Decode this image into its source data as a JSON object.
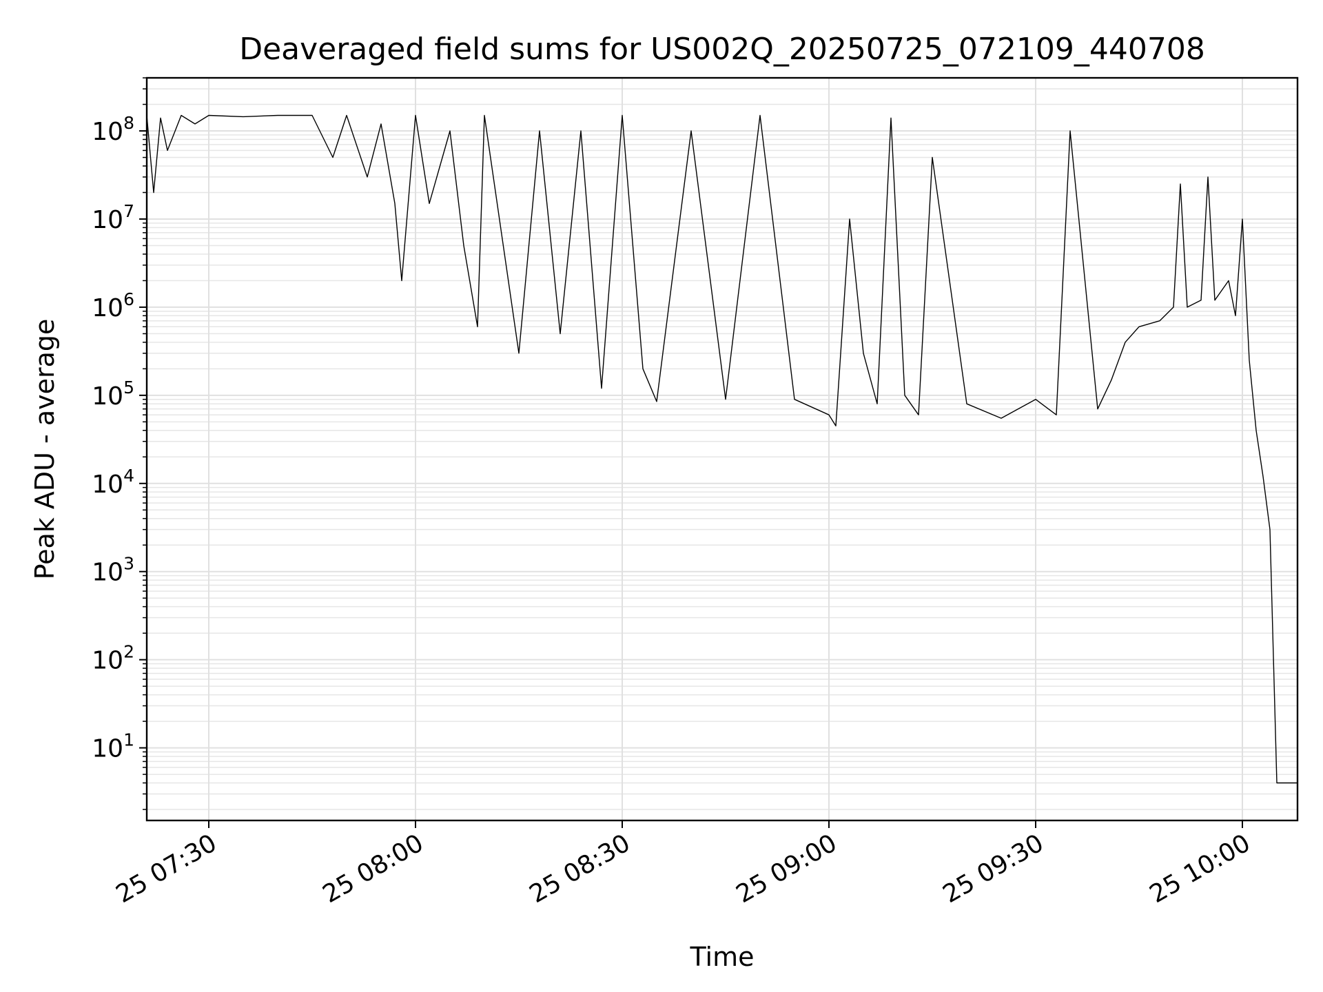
{
  "chart_data": {
    "type": "line",
    "title": "Deaveraged field sums for US002Q_20250725_072109_440708",
    "xlabel": "Time",
    "ylabel": "Peak ADU - average",
    "y_scale": "log",
    "x_range": [
      "2025-07-25 07:21",
      "2025-07-25 10:08"
    ],
    "ylim": [
      1.5,
      400000000
    ],
    "grid": "major and minor",
    "x_ticks": [
      {
        "time": "2025-07-25 07:30",
        "label": "25 07:30"
      },
      {
        "time": "2025-07-25 08:00",
        "label": "25 08:00"
      },
      {
        "time": "2025-07-25 08:30",
        "label": "25 08:30"
      },
      {
        "time": "2025-07-25 09:00",
        "label": "25 09:00"
      },
      {
        "time": "2025-07-25 09:30",
        "label": "25 09:30"
      },
      {
        "time": "2025-07-25 10:00",
        "label": "25 10:00"
      }
    ],
    "y_ticks": [
      {
        "value": 10,
        "base": "10",
        "exp": "1"
      },
      {
        "value": 100,
        "base": "10",
        "exp": "2"
      },
      {
        "value": 1000,
        "base": "10",
        "exp": "3"
      },
      {
        "value": 10000,
        "base": "10",
        "exp": "4"
      },
      {
        "value": 100000,
        "base": "10",
        "exp": "5"
      },
      {
        "value": 1000000,
        "base": "10",
        "exp": "6"
      },
      {
        "value": 10000000,
        "base": "10",
        "exp": "7"
      },
      {
        "value": 100000000,
        "base": "10",
        "exp": "8"
      }
    ],
    "series": [
      {
        "color": "#000000",
        "points": [
          [
            "2025-07-25 07:21",
            150000000.0
          ],
          [
            "2025-07-25 07:22",
            20000000.0
          ],
          [
            "2025-07-25 07:23",
            140000000.0
          ],
          [
            "2025-07-25 07:24",
            60000000.0
          ],
          [
            "2025-07-25 07:26",
            150000000.0
          ],
          [
            "2025-07-25 07:28",
            120000000.0
          ],
          [
            "2025-07-25 07:30",
            150000000.0
          ],
          [
            "2025-07-25 07:35",
            145000000.0
          ],
          [
            "2025-07-25 07:40",
            150000000.0
          ],
          [
            "2025-07-25 07:45",
            150000000.0
          ],
          [
            "2025-07-25 07:48",
            50000000.0
          ],
          [
            "2025-07-25 07:50",
            150000000.0
          ],
          [
            "2025-07-25 07:53",
            30000000.0
          ],
          [
            "2025-07-25 07:55",
            120000000.0
          ],
          [
            "2025-07-25 07:57",
            15000000.0
          ],
          [
            "2025-07-25 07:58",
            2000000.0
          ],
          [
            "2025-07-25 08:00",
            150000000.0
          ],
          [
            "2025-07-25 08:02",
            15000000.0
          ],
          [
            "2025-07-25 08:05",
            100000000.0
          ],
          [
            "2025-07-25 08:07",
            5000000.0
          ],
          [
            "2025-07-25 08:09",
            600000.0
          ],
          [
            "2025-07-25 08:10",
            150000000.0
          ],
          [
            "2025-07-25 08:15",
            300000.0
          ],
          [
            "2025-07-25 08:18",
            100000000.0
          ],
          [
            "2025-07-25 08:21",
            500000.0
          ],
          [
            "2025-07-25 08:24",
            100000000.0
          ],
          [
            "2025-07-25 08:27",
            120000.0
          ],
          [
            "2025-07-25 08:30",
            150000000.0
          ],
          [
            "2025-07-25 08:33",
            200000.0
          ],
          [
            "2025-07-25 08:35",
            85000.0
          ],
          [
            "2025-07-25 08:40",
            100000000.0
          ],
          [
            "2025-07-25 08:45",
            90000.0
          ],
          [
            "2025-07-25 08:50",
            150000000.0
          ],
          [
            "2025-07-25 08:55",
            90000.0
          ],
          [
            "2025-07-25 09:00",
            60000.0
          ],
          [
            "2025-07-25 09:01",
            45000.0
          ],
          [
            "2025-07-25 09:03",
            10000000.0
          ],
          [
            "2025-07-25 09:05",
            300000.0
          ],
          [
            "2025-07-25 09:07",
            80000.0
          ],
          [
            "2025-07-25 09:09",
            140000000.0
          ],
          [
            "2025-07-25 09:11",
            100000.0
          ],
          [
            "2025-07-25 09:13",
            60000.0
          ],
          [
            "2025-07-25 09:15",
            50000000.0
          ],
          [
            "2025-07-25 09:20",
            80000.0
          ],
          [
            "2025-07-25 09:25",
            55000.0
          ],
          [
            "2025-07-25 09:30",
            90000.0
          ],
          [
            "2025-07-25 09:33",
            60000.0
          ],
          [
            "2025-07-25 09:35",
            100000000.0
          ],
          [
            "2025-07-25 09:39",
            70000.0
          ],
          [
            "2025-07-25 09:41",
            150000.0
          ],
          [
            "2025-07-25 09:43",
            400000.0
          ],
          [
            "2025-07-25 09:45",
            600000.0
          ],
          [
            "2025-07-25 09:48",
            700000.0
          ],
          [
            "2025-07-25 09:50",
            1000000.0
          ],
          [
            "2025-07-25 09:51",
            25000000.0
          ],
          [
            "2025-07-25 09:52",
            1000000.0
          ],
          [
            "2025-07-25 09:54",
            1200000.0
          ],
          [
            "2025-07-25 09:55",
            30000000.0
          ],
          [
            "2025-07-25 09:56",
            1200000.0
          ],
          [
            "2025-07-25 09:58",
            2000000.0
          ],
          [
            "2025-07-25 09:59",
            800000.0
          ],
          [
            "2025-07-25 10:00",
            10000000.0
          ],
          [
            "2025-07-25 10:01",
            250000.0
          ],
          [
            "2025-07-25 10:02",
            40000.0
          ],
          [
            "2025-07-25 10:03",
            12000.0
          ],
          [
            "2025-07-25 10:04",
            3000.0
          ],
          [
            "2025-07-25 10:05",
            4
          ],
          [
            "2025-07-25 10:08",
            4
          ]
        ]
      }
    ]
  }
}
